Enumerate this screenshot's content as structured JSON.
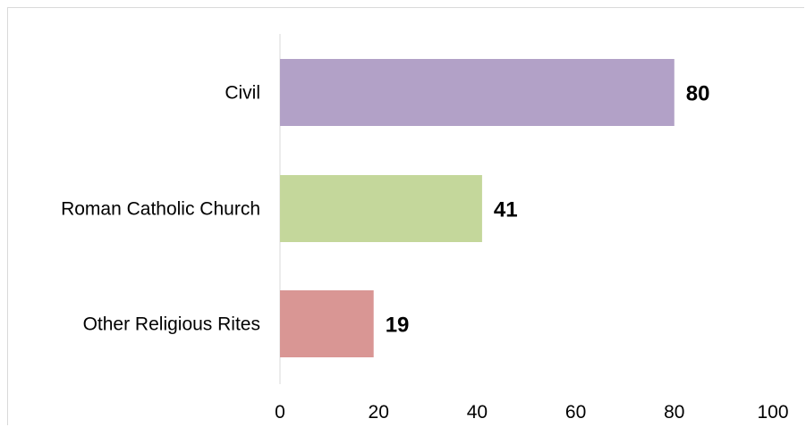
{
  "chart_data": {
    "type": "bar",
    "orientation": "horizontal",
    "categories": [
      "Civil",
      "Roman Catholic Church",
      "Other Religious Rites"
    ],
    "values": [
      80,
      41,
      19
    ],
    "colors": [
      "#b2a1c7",
      "#c4d79b",
      "#d99694"
    ],
    "data_labels": [
      "80",
      "41",
      "19"
    ],
    "xticks": [
      "0",
      "20",
      "40",
      "60",
      "80",
      "100"
    ],
    "xlim": [
      0,
      100
    ],
    "title": "",
    "xlabel": "",
    "ylabel": "",
    "grid": false,
    "legend": "none"
  }
}
